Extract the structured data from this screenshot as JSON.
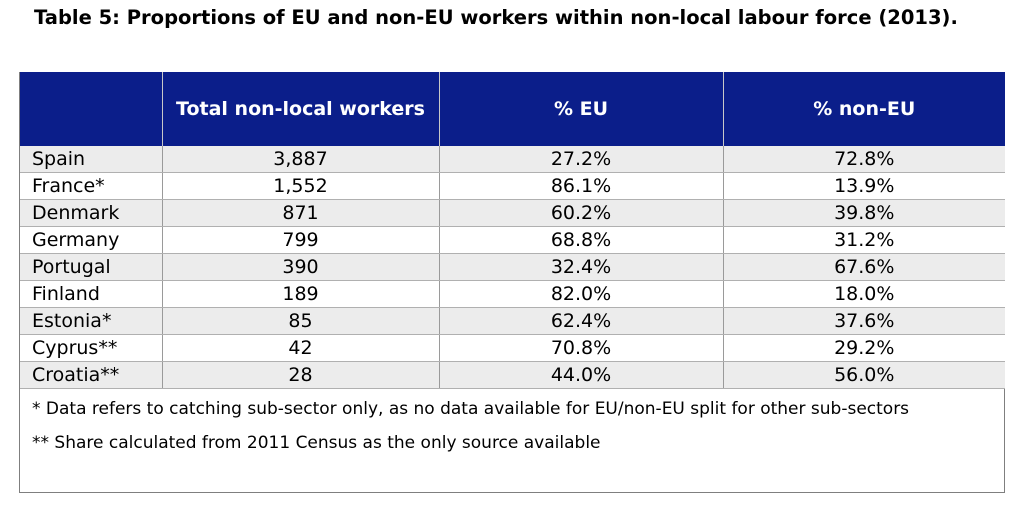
{
  "title": "Table 5: Proportions of EU and non-EU workers within non-local labour force (2013).",
  "columns": [
    "",
    "Total non-local workers",
    "% EU",
    "% non-EU"
  ],
  "rows": [
    [
      "Spain",
      "3,887",
      "27.2%",
      "72.8%"
    ],
    [
      "France*",
      "1,552",
      "86.1%",
      "13.9%"
    ],
    [
      "Denmark",
      "871",
      "60.2%",
      "39.8%"
    ],
    [
      "Germany",
      "799",
      "68.8%",
      "31.2%"
    ],
    [
      "Portugal",
      "390",
      "32.4%",
      "67.6%"
    ],
    [
      "Finland",
      "189",
      "82.0%",
      "18.0%"
    ],
    [
      "Estonia*",
      "85",
      "62.4%",
      "37.6%"
    ],
    [
      "Cyprus**",
      "42",
      "70.8%",
      "29.2%"
    ],
    [
      "Croatia**",
      "28",
      "44.0%",
      "56.0%"
    ]
  ],
  "notes": [
    "* Data refers to catching sub-sector only, as no data available for EU/non-EU split for other sub-sectors",
    "** Share calculated from 2011 Census as the only source available"
  ],
  "colors": {
    "header_bg": "#0b1e8a",
    "row_alt": "#ececec"
  }
}
